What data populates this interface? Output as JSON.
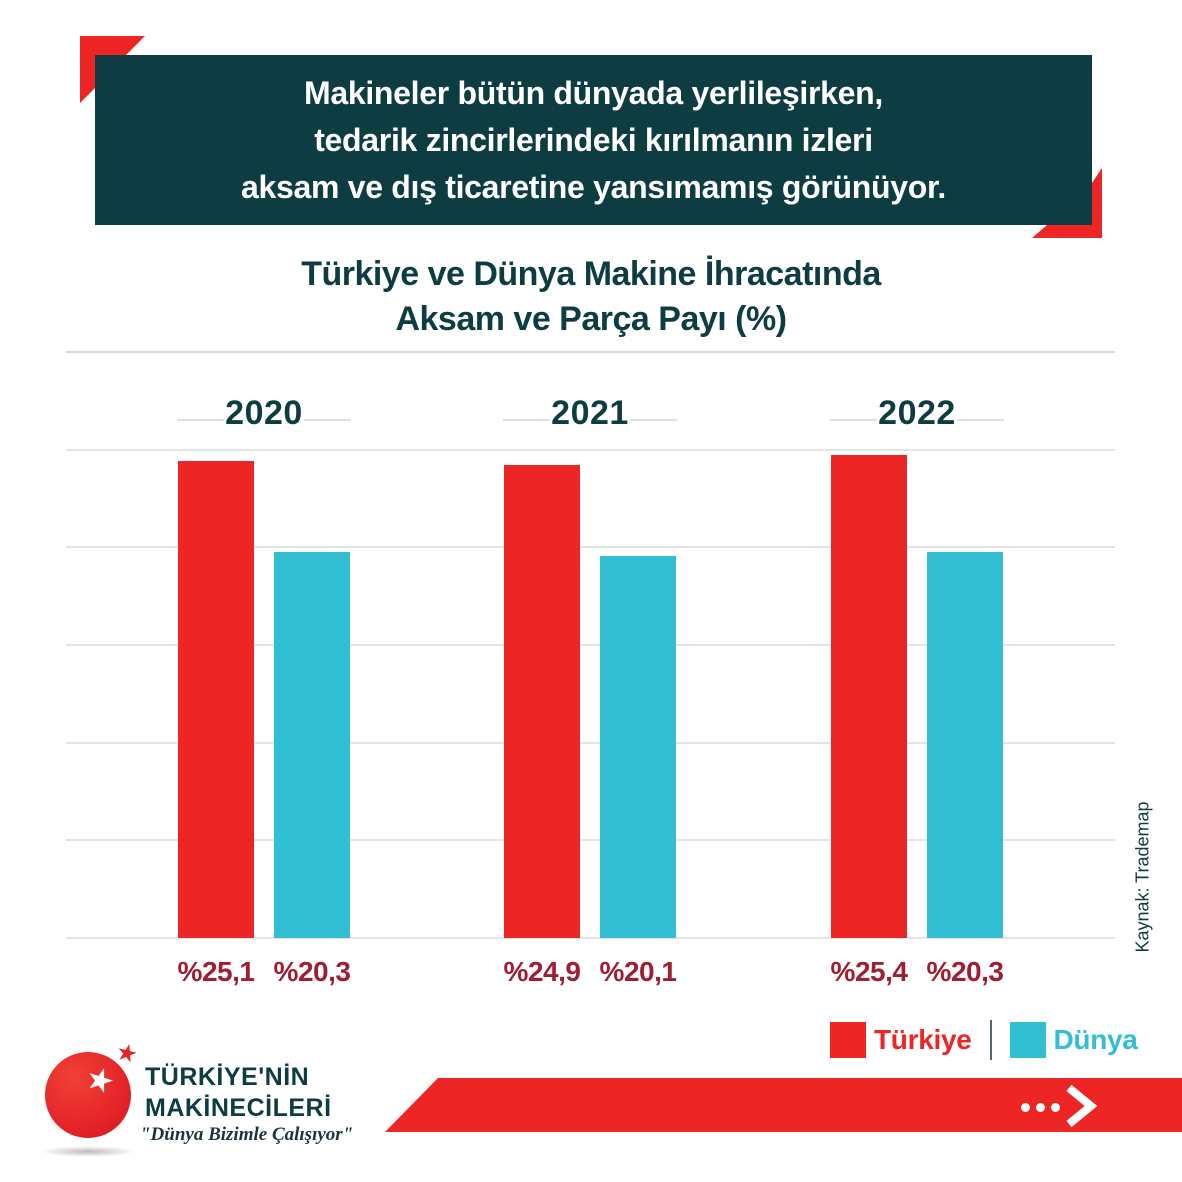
{
  "header": {
    "lines": [
      "Makineler bütün dünyada yerlileşirken,",
      "tedarik zincirlerindeki kırılmanın izleri",
      "aksam ve dış ticaretine yansımamış görünüyor."
    ]
  },
  "chart_data": {
    "type": "bar",
    "title": "Türkiye ve Dünya Makine İhracatında Aksam ve Parça Payı (%)",
    "title_lines": [
      "Türkiye ve Dünya Makine İhracatında",
      "Aksam ve Parça Payı (%)"
    ],
    "categories": [
      "2020",
      "2021",
      "2022"
    ],
    "series": [
      {
        "name": "Türkiye",
        "color": "#ED2524",
        "values": [
          25.1,
          24.9,
          25.4
        ],
        "labels": [
          "%25,1",
          "%24,9",
          "%25,4"
        ]
      },
      {
        "name": "Dünya",
        "color": "#33BFD3",
        "values": [
          20.3,
          20.1,
          20.3
        ],
        "labels": [
          "%20,3",
          "%20,1",
          "%20,3"
        ]
      }
    ],
    "xlabel": "",
    "ylabel": "",
    "ylim": [
      0,
      30
    ],
    "grid": true,
    "grid_step_pct": 5,
    "legend_position": "bottom-right",
    "value_label_color": "#A01E32",
    "source": "Kaynak: Trademap"
  },
  "legend": {
    "items": [
      {
        "label": "Türkiye",
        "color": "#ED2524"
      },
      {
        "label": "Dünya",
        "color": "#33BFD3"
      }
    ]
  },
  "source_label": "Kaynak: Trademap",
  "brand": {
    "line1": "TÜRKİYE'NİN",
    "line2": "MAKİNECİLERİ",
    "slogan": "\"Dünya Bizimle Çalışıyor\""
  },
  "icons": {
    "banner_arrow": "ellipsis-chevron-right",
    "logo_star_white": "star",
    "logo_star_red": "star"
  },
  "colors": {
    "accent_red": "#ED2524",
    "accent_cyan": "#33BFD3",
    "dark_teal": "#0D3D43",
    "value_label_red": "#A01E32",
    "gridline_gray": "#E4E4E4"
  }
}
